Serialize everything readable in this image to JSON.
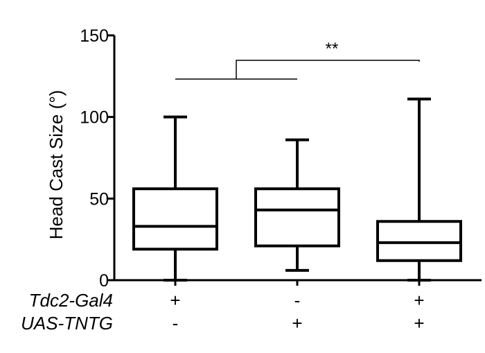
{
  "chart_data": {
    "type": "box",
    "ylabel": "Head Cast Size (°)",
    "ylim": [
      0,
      150
    ],
    "yticks": [
      0,
      50,
      100,
      150
    ],
    "ytick_labels": [
      "0",
      "50",
      "100",
      "150"
    ],
    "genotype_rows": [
      {
        "name": "Tdc2-Gal4",
        "values": [
          "+",
          "-",
          "+"
        ]
      },
      {
        "name": "UAS-TNTG",
        "values": [
          "-",
          "+",
          "+"
        ]
      }
    ],
    "boxes": [
      {
        "min": 0,
        "q1": 19,
        "median": 33,
        "q3": 56,
        "max": 100
      },
      {
        "min": 6,
        "q1": 21,
        "median": 43,
        "q3": 56,
        "max": 86
      },
      {
        "min": 0,
        "q1": 12,
        "median": 23,
        "q3": 36,
        "max": 111
      }
    ],
    "significance": {
      "label": "**",
      "group_a": [
        0,
        1
      ],
      "group_b": 2
    }
  }
}
